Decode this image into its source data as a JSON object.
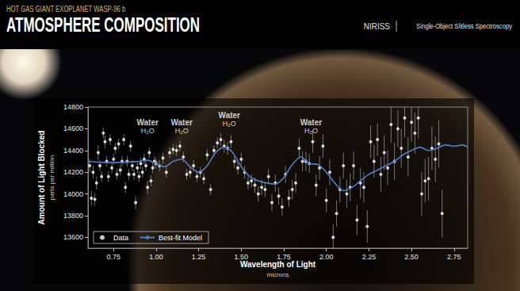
{
  "chart_data": {
    "type": "scatter",
    "subtitle": "HOT GAS GIANT EXOPLANET WASP-96 b",
    "title": "ATMOSPHERE COMPOSITION",
    "header_right": [
      "NIRISS",
      "Single-Object Slitless Spectroscopy"
    ],
    "x_label": "Wavelength of Light",
    "x_unit": "microns",
    "y_label": "Amount of Light Blocked",
    "y_unit": "parts per million",
    "xlim": [
      0.6,
      2.83
    ],
    "xticks": [
      0.75,
      {
        "value": 1,
        "label": "1.00"
      },
      1.25,
      {
        "value": 1.5,
        "label": "1.50"
      },
      1.75,
      {
        "value": 2,
        "label": "2.00"
      },
      2.25,
      {
        "value": 2.5,
        "label": "2.50"
      },
      2.75
    ],
    "ylim": [
      13500,
      14800
    ],
    "yticks": [
      13600,
      13800,
      14000,
      14200,
      14400,
      14600,
      14800
    ],
    "grid": false,
    "legend": "lower left",
    "series": [
      {
        "name": "Data",
        "type": "scatter",
        "color": "#ffffff",
        "marker": "circle",
        "x": [
          0.61,
          0.62,
          0.63,
          0.64,
          0.65,
          0.66,
          0.67,
          0.68,
          0.69,
          0.7,
          0.71,
          0.72,
          0.73,
          0.74,
          0.75,
          0.76,
          0.77,
          0.78,
          0.79,
          0.8,
          0.81,
          0.82,
          0.83,
          0.84,
          0.85,
          0.86,
          0.87,
          0.88,
          0.89,
          0.9,
          0.91,
          0.92,
          0.93,
          0.94,
          0.95,
          0.96,
          0.97,
          0.98,
          0.99,
          1.0,
          1.02,
          1.04,
          1.06,
          1.08,
          1.1,
          1.12,
          1.14,
          1.16,
          1.18,
          1.2,
          1.22,
          1.24,
          1.26,
          1.28,
          1.3,
          1.32,
          1.34,
          1.36,
          1.38,
          1.4,
          1.42,
          1.44,
          1.46,
          1.48,
          1.5,
          1.52,
          1.54,
          1.56,
          1.58,
          1.6,
          1.62,
          1.64,
          1.66,
          1.68,
          1.7,
          1.72,
          1.74,
          1.76,
          1.78,
          1.8,
          1.82,
          1.84,
          1.86,
          1.88,
          1.9,
          1.92,
          1.94,
          1.96,
          1.98,
          2.0,
          2.02,
          2.04,
          2.06,
          2.08,
          2.1,
          2.12,
          2.14,
          2.16,
          2.18,
          2.2,
          2.22,
          2.24,
          2.26,
          2.28,
          2.3,
          2.32,
          2.34,
          2.36,
          2.38,
          2.4,
          2.42,
          2.44,
          2.46,
          2.48,
          2.5,
          2.52,
          2.54,
          2.56,
          2.58,
          2.6,
          2.62,
          2.64,
          2.66,
          2.68
        ],
        "values": [
          14260,
          13960,
          14200,
          13950,
          14100,
          14380,
          14260,
          14160,
          14560,
          14480,
          14300,
          14160,
          14500,
          14240,
          14320,
          14420,
          14180,
          14460,
          14220,
          14300,
          14500,
          14060,
          14300,
          14180,
          14440,
          14260,
          14180,
          13920,
          14240,
          14160,
          14280,
          14200,
          14320,
          14260,
          14060,
          14380,
          14120,
          14240,
          14300,
          14280,
          14260,
          14330,
          14200,
          14380,
          14410,
          14400,
          14440,
          14340,
          14180,
          14200,
          14260,
          14160,
          14200,
          14140,
          14360,
          14040,
          14400,
          14470,
          14500,
          14440,
          14420,
          14480,
          14300,
          14240,
          14320,
          14200,
          14100,
          14120,
          14080,
          14000,
          14060,
          14040,
          14160,
          13920,
          14100,
          13980,
          13880,
          14180,
          13960,
          14040,
          14100,
          14420,
          14300,
          14300,
          14280,
          14480,
          14080,
          14240,
          14440,
          13940,
          14200,
          13600,
          13820,
          14040,
          14260,
          14000,
          14060,
          14260,
          13760,
          14100,
          14060,
          13700,
          14480,
          14300,
          14500,
          14180,
          14380,
          14240,
          14640,
          14300,
          14600,
          14420,
          14700,
          14340,
          14660,
          14560,
          14700,
          14000,
          14120,
          14140,
          14420,
          14320,
          14460,
          13820
        ],
        "errors": [
          60,
          70,
          60,
          60,
          60,
          70,
          50,
          50,
          50,
          60,
          50,
          50,
          50,
          50,
          50,
          50,
          50,
          50,
          50,
          50,
          50,
          50,
          50,
          50,
          50,
          50,
          50,
          60,
          50,
          50,
          50,
          50,
          50,
          50,
          60,
          50,
          50,
          50,
          50,
          50,
          50,
          50,
          50,
          50,
          50,
          50,
          50,
          50,
          50,
          50,
          50,
          50,
          50,
          50,
          50,
          50,
          50,
          50,
          60,
          60,
          60,
          60,
          60,
          60,
          60,
          60,
          60,
          60,
          70,
          70,
          70,
          70,
          70,
          80,
          80,
          80,
          80,
          80,
          80,
          90,
          90,
          90,
          90,
          90,
          90,
          100,
          100,
          110,
          110,
          110,
          120,
          120,
          120,
          120,
          120,
          130,
          130,
          130,
          140,
          140,
          140,
          150,
          150,
          150,
          150,
          160,
          160,
          160,
          170,
          170,
          170,
          180,
          180,
          180,
          180,
          190,
          190,
          200,
          200,
          200,
          200,
          210,
          220,
          220
        ]
      },
      {
        "name": "Best-fit Model",
        "type": "line",
        "color": "#4f7cc9",
        "line_style": "solid",
        "x": [
          0.6,
          0.7,
          0.8,
          0.9,
          0.95,
          1.0,
          1.05,
          1.1,
          1.15,
          1.2,
          1.25,
          1.3,
          1.35,
          1.4,
          1.45,
          1.5,
          1.55,
          1.6,
          1.65,
          1.7,
          1.75,
          1.8,
          1.85,
          1.9,
          1.95,
          2.0,
          2.05,
          2.1,
          2.15,
          2.2,
          2.25,
          2.3,
          2.35,
          2.4,
          2.45,
          2.5,
          2.55,
          2.6,
          2.65,
          2.7,
          2.75,
          2.8,
          2.83
        ],
        "values": [
          14300,
          14290,
          14290,
          14300,
          14310,
          14280,
          14250,
          14300,
          14320,
          14250,
          14200,
          14260,
          14380,
          14430,
          14380,
          14250,
          14160,
          14120,
          14100,
          14090,
          14150,
          14270,
          14340,
          14280,
          14270,
          14200,
          14100,
          14030,
          14060,
          14120,
          14180,
          14220,
          14260,
          14300,
          14360,
          14400,
          14430,
          14400,
          14420,
          14450,
          14440,
          14450,
          14430
        ]
      }
    ],
    "annotations": [
      {
        "text": "Water",
        "subtext": "H₂O",
        "x": 0.95,
        "y": 14620
      },
      {
        "text": "Water",
        "subtext": "H₂O",
        "x": 1.15,
        "y": 14620
      },
      {
        "text": "Water",
        "subtext": "H₂O",
        "x": 1.43,
        "y": 14690
      },
      {
        "text": "Water",
        "subtext": "H₂O",
        "x": 1.91,
        "y": 14620
      }
    ]
  }
}
